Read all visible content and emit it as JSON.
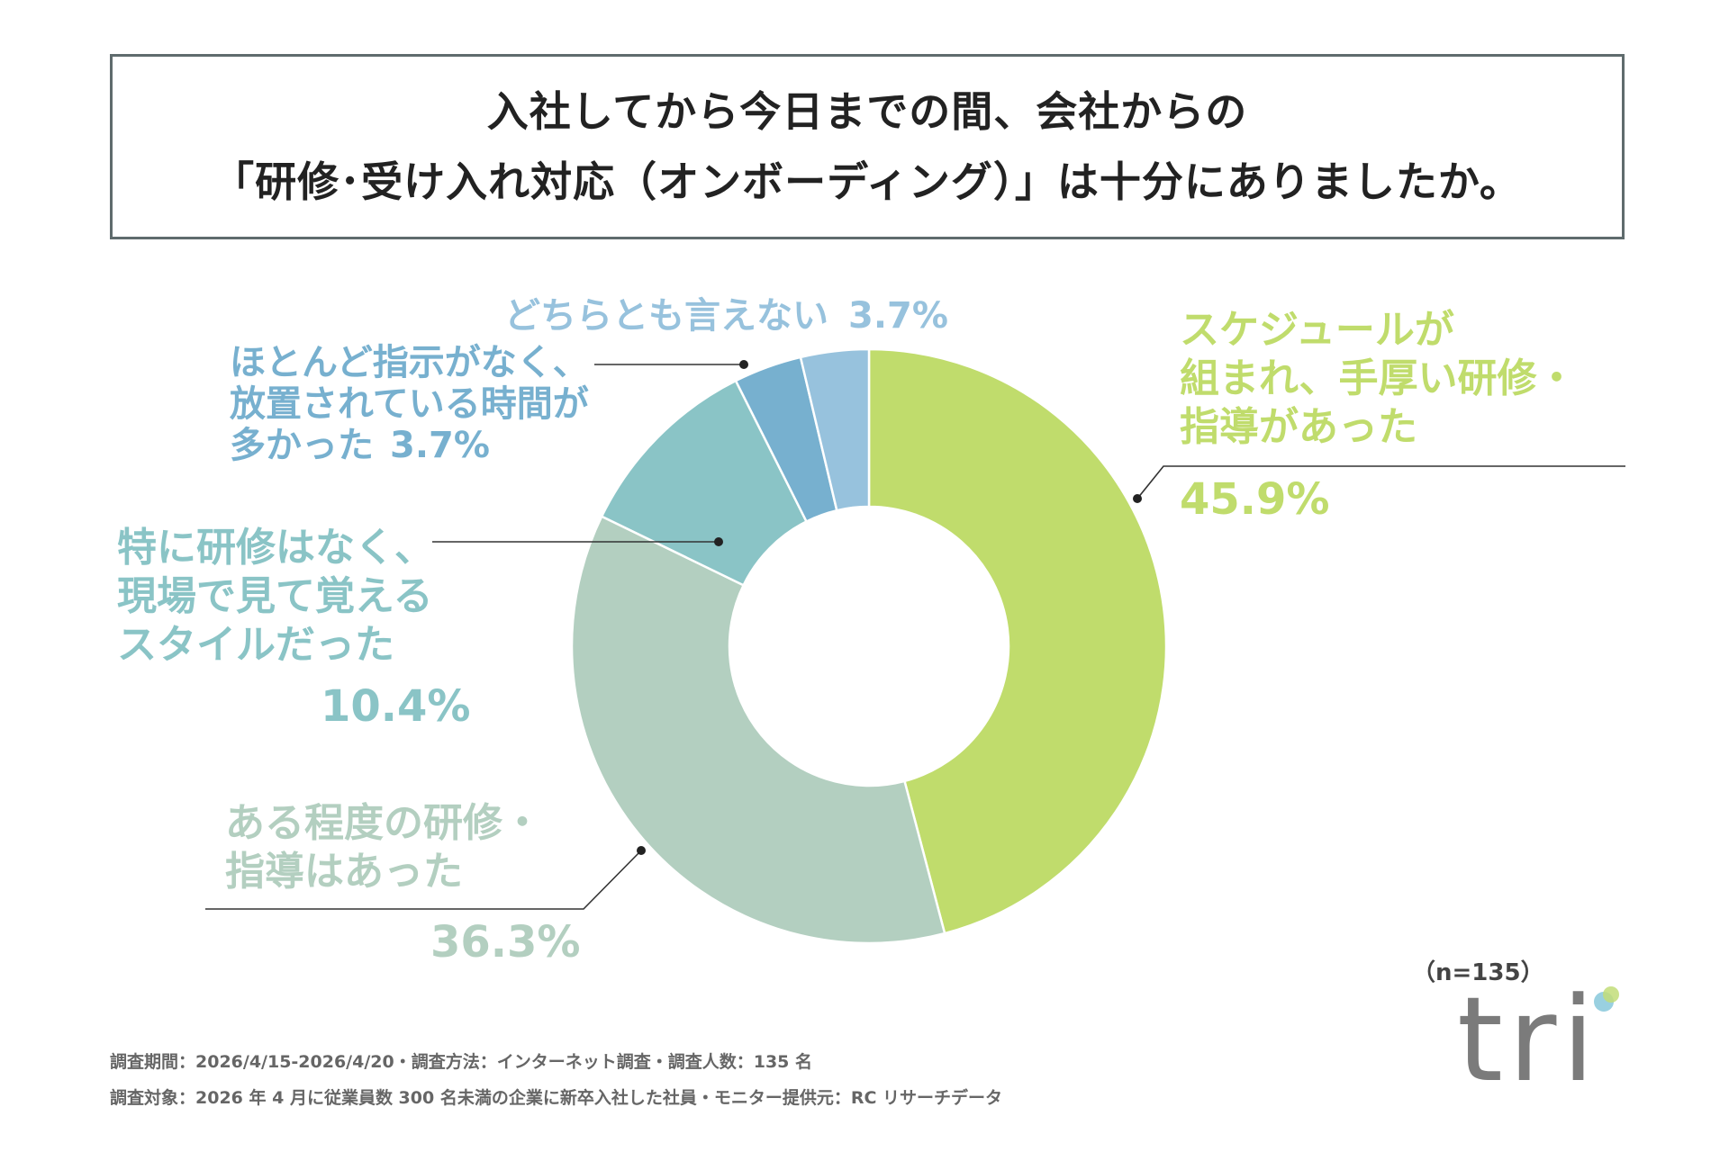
{
  "title": {
    "line1": "入社してから今日までの間、会社からの",
    "line2": "「研修･受け入れ対応（オンボーディング）」は十分にありましたか。"
  },
  "chart_data": {
    "type": "pie",
    "donut": true,
    "n": 135,
    "slices": [
      {
        "label_lines": [
          "スケジュールが",
          "組まれ、手厚い研修・",
          "指導があった"
        ],
        "value": 45.9,
        "pct_label": "45.9%",
        "color": "#c0dc6c"
      },
      {
        "label_lines": [
          "ある程度の研修・",
          "指導はあった"
        ],
        "value": 36.3,
        "pct_label": "36.3%",
        "color": "#b3cfc0"
      },
      {
        "label_lines": [
          "特に研修はなく、",
          "現場で見て覚える",
          "スタイルだった"
        ],
        "value": 10.4,
        "pct_label": "10.4%",
        "color": "#8ac4c6"
      },
      {
        "label_lines": [
          "ほとんど指示がなく、",
          "放置されている時間が",
          "多かった"
        ],
        "value": 3.7,
        "pct_label": "3.7%",
        "color": "#77b0cf"
      },
      {
        "label_lines": [
          "どちらとも言えない"
        ],
        "value": 3.7,
        "pct_label": "3.7%",
        "color": "#97c2dd"
      }
    ]
  },
  "sample_size": "（n=135）",
  "footnote": {
    "line1": "調査期間：2026/4/15-2026/4/20・調査方法：インターネット調査・調査人数：135 名",
    "line2": "調査対象：2026 年 4 月に従業員数 300 名未満の企業に新卒入社した社員・モニター提供元：RC リサーチデータ"
  },
  "logo": {
    "text": "tri"
  }
}
